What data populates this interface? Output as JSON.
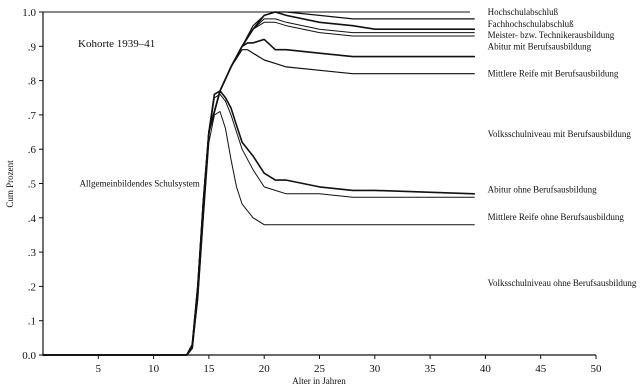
{
  "chart_data": {
    "type": "line",
    "title": "Kohorte 1939–41",
    "xlabel": "Alter in Jahren",
    "ylabel": "Cum Prozent",
    "xlim": [
      0,
      50
    ],
    "ylim": [
      0,
      1.0
    ],
    "x_ticks": [
      5,
      10,
      15,
      20,
      25,
      30,
      35,
      40,
      45,
      50
    ],
    "y_ticks": [
      {
        "value": 0.0,
        "label": "0.0"
      },
      {
        "value": 0.1,
        "label": ".1"
      },
      {
        "value": 0.2,
        "label": ".2"
      },
      {
        "value": 0.3,
        "label": ".3"
      },
      {
        "value": 0.4,
        "label": ".4"
      },
      {
        "value": 0.5,
        "label": ".5"
      },
      {
        "value": 0.6,
        "label": ".6"
      },
      {
        "value": 0.7,
        "label": ".7"
      },
      {
        "value": 0.8,
        "label": ".8"
      },
      {
        "value": 0.9,
        "label": ".9"
      },
      {
        "value": 1.0,
        "label": "1.0"
      }
    ],
    "series": [
      {
        "x": [
          0,
          13.0,
          13.5,
          14.0,
          14.5,
          15.0,
          16.0,
          17.0,
          18.0,
          19.0,
          20.0,
          21.0,
          22.0,
          25.0,
          28.0,
          30.0,
          39.0
        ],
        "y": [
          0,
          0,
          0.03,
          0.2,
          0.45,
          0.65,
          0.77,
          0.84,
          0.9,
          0.96,
          0.99,
          1.0,
          1.0,
          0.99,
          0.98,
          0.98,
          0.98
        ]
      },
      {
        "x": [
          0,
          13.0,
          13.5,
          14.0,
          14.5,
          15.0,
          16.0,
          17.0,
          18.0,
          19.0,
          20.0,
          21.0,
          22.0,
          25.0,
          28.0,
          30.0,
          39.0
        ],
        "y": [
          0,
          0,
          0.03,
          0.2,
          0.45,
          0.65,
          0.77,
          0.84,
          0.9,
          0.95,
          0.99,
          1.0,
          0.99,
          0.97,
          0.96,
          0.95,
          0.95
        ]
      },
      {
        "x": [
          0,
          13.0,
          13.5,
          14.0,
          14.5,
          15.0,
          16.0,
          17.0,
          18.0,
          19.0,
          20.0,
          21.0,
          22.0,
          25.0,
          28.0,
          30.0,
          39.0
        ],
        "y": [
          0,
          0,
          0.03,
          0.2,
          0.45,
          0.65,
          0.77,
          0.84,
          0.9,
          0.95,
          0.98,
          0.98,
          0.97,
          0.95,
          0.94,
          0.94,
          0.94
        ]
      },
      {
        "x": [
          0,
          13.0,
          13.5,
          14.0,
          14.5,
          15.0,
          16.0,
          17.0,
          18.0,
          19.0,
          20.0,
          21.0,
          22.0,
          25.0,
          28.0,
          30.0,
          39.0
        ],
        "y": [
          0,
          0,
          0.03,
          0.2,
          0.45,
          0.65,
          0.77,
          0.84,
          0.9,
          0.95,
          0.97,
          0.97,
          0.96,
          0.94,
          0.93,
          0.93,
          0.93
        ]
      },
      {
        "x": [
          0,
          13.0,
          13.5,
          14.0,
          14.5,
          15.0,
          16.0,
          17.0,
          18.0,
          18.5,
          19.0,
          20.0,
          21.0,
          22.0,
          25.0,
          28.0,
          30.0,
          39.0
        ],
        "y": [
          0,
          0,
          0.03,
          0.2,
          0.45,
          0.65,
          0.77,
          0.84,
          0.9,
          0.91,
          0.91,
          0.92,
          0.89,
          0.89,
          0.88,
          0.87,
          0.87,
          0.87
        ]
      },
      {
        "x": [
          0,
          13.0,
          13.5,
          14.0,
          14.5,
          15.0,
          16.0,
          17.0,
          18.0,
          18.5,
          19.0,
          20.0,
          21.0,
          22.0,
          25.0,
          28.0,
          30.0,
          39.0
        ],
        "y": [
          0,
          0,
          0.03,
          0.2,
          0.45,
          0.65,
          0.77,
          0.84,
          0.89,
          0.89,
          0.88,
          0.86,
          0.85,
          0.84,
          0.83,
          0.82,
          0.82,
          0.82
        ]
      },
      {
        "x": [
          0,
          13.0,
          13.5,
          14.0,
          14.5,
          15.0,
          15.5,
          16.0,
          16.5,
          17.0,
          17.5,
          18.0,
          19.0,
          20.0,
          21.0,
          22.0,
          25.0,
          28.0,
          30.0,
          39.0
        ],
        "y": [
          0,
          0,
          0.02,
          0.18,
          0.42,
          0.65,
          0.76,
          0.77,
          0.75,
          0.72,
          0.67,
          0.62,
          0.58,
          0.53,
          0.51,
          0.51,
          0.49,
          0.48,
          0.48,
          0.47
        ]
      },
      {
        "x": [
          0,
          13.0,
          13.5,
          14.0,
          14.5,
          15.0,
          15.5,
          16.0,
          16.5,
          17.0,
          17.5,
          18.0,
          19.0,
          20.0,
          21.0,
          22.0,
          25.0,
          28.0,
          30.0,
          39.0
        ],
        "y": [
          0,
          0,
          0.02,
          0.18,
          0.42,
          0.64,
          0.75,
          0.76,
          0.74,
          0.7,
          0.65,
          0.6,
          0.54,
          0.49,
          0.48,
          0.47,
          0.47,
          0.46,
          0.46,
          0.46
        ]
      },
      {
        "x": [
          0,
          13.0,
          13.5,
          14.0,
          14.5,
          15.0,
          15.5,
          16.0,
          16.5,
          17.0,
          17.5,
          18.0,
          19.0,
          20.0,
          21.0,
          22.0,
          25.0,
          28.0,
          30.0,
          39.0
        ],
        "y": [
          0,
          0,
          0.02,
          0.16,
          0.4,
          0.62,
          0.7,
          0.71,
          0.66,
          0.57,
          0.49,
          0.44,
          0.4,
          0.38,
          0.38,
          0.38,
          0.38,
          0.38,
          0.38,
          0.38
        ]
      }
    ],
    "annotations": [
      {
        "text": "Hochschulabschluß",
        "x": 40.2,
        "y": 1.0
      },
      {
        "text": "Fachhochschulabschluß",
        "x": 40.2,
        "y": 0.965
      },
      {
        "text": "Meister- bzw. Technikerausbildung",
        "x": 40.2,
        "y": 0.933
      },
      {
        "text": "Abitur mit Berufsausbildung",
        "x": 40.2,
        "y": 0.9
      },
      {
        "text": "Mittlere Reife mit Berufsausbildung",
        "x": 40.2,
        "y": 0.82
      },
      {
        "text": "Volksschulniveau mit Berufsausbildung",
        "x": 40.2,
        "y": 0.645
      },
      {
        "text": "Abitur ohne Berufsausbildung",
        "x": 40.2,
        "y": 0.483
      },
      {
        "text": "Mittlere Reife ohne Berufsausbildung",
        "x": 40.2,
        "y": 0.403
      },
      {
        "text": "Volksschulniveau ohne Berufsausbildung",
        "x": 40.2,
        "y": 0.21
      },
      {
        "text": "Allgemeinbildendes Schulsystem",
        "x": 3.3,
        "y": 0.5
      }
    ],
    "grid": false
  }
}
